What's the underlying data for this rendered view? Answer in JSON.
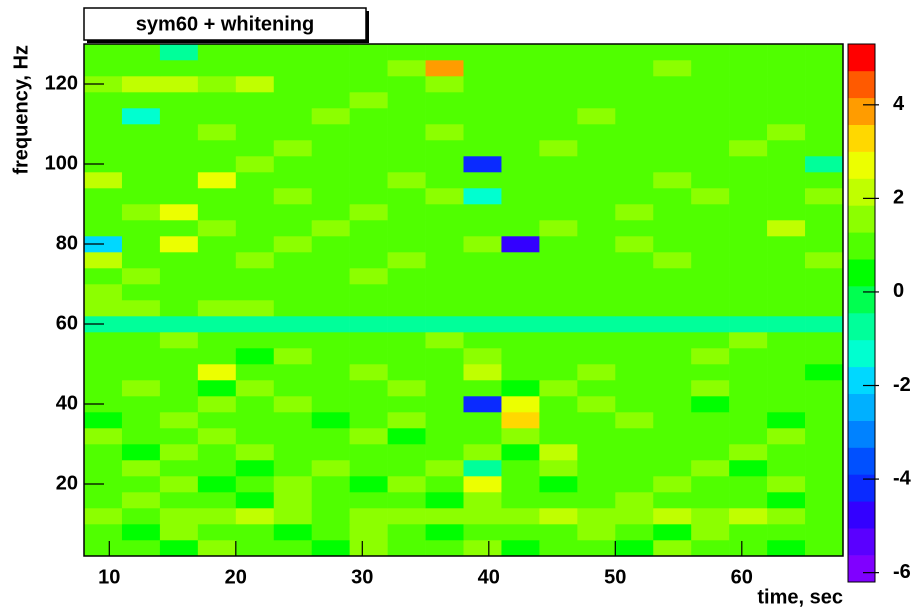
{
  "chart_data": {
    "type": "heatmap",
    "title": "sym60 + whitening",
    "x_label": "time, sec",
    "y_label": "frequency, Hz",
    "xlim": [
      8,
      68
    ],
    "ylim": [
      2,
      130
    ],
    "zlim": [
      -6.2,
      5.3
    ],
    "xticks": [
      10,
      20,
      30,
      40,
      50,
      60
    ],
    "yticks": [
      20,
      40,
      60,
      80,
      100,
      120
    ],
    "zticks": [
      -6,
      -4,
      -2,
      0,
      2,
      4
    ],
    "x_bins": [
      8,
      11,
      14,
      17,
      20,
      23,
      26,
      29,
      32,
      35,
      38,
      41,
      44,
      47,
      50,
      53,
      56,
      59,
      62,
      65,
      68
    ],
    "y_bins": [
      2,
      6,
      10,
      14,
      18,
      22,
      26,
      30,
      34,
      38,
      42,
      46,
      50,
      54,
      58,
      62,
      66,
      70,
      74,
      78,
      82,
      86,
      90,
      94,
      98,
      102,
      106,
      110,
      114,
      118,
      122,
      126,
      130
    ],
    "palette": [
      "#8000ff",
      "#5a00ff",
      "#3300ff",
      "#0a2aff",
      "#0050ff",
      "#0082ff",
      "#00b0ff",
      "#00d8ff",
      "#00ffd0",
      "#00ff9a",
      "#00ff50",
      "#00ff00",
      "#50ff00",
      "#8cff00",
      "#c0ff00",
      "#ecff00",
      "#ffd800",
      "#ff9c00",
      "#ff5a00",
      "#ff0000"
    ],
    "z": [
      [
        0.8,
        1.2,
        0.5,
        1.6,
        0.9,
        1.1,
        0.4,
        1.3,
        0.7,
        1.0,
        1.5,
        0.6,
        1.2,
        0.9,
        0.3,
        1.4,
        0.8,
        1.1,
        0.6,
        1.0
      ],
      [
        1.1,
        0.6,
        1.4,
        0.8,
        1.2,
        0.5,
        1.0,
        1.7,
        0.9,
        0.4,
        1.2,
        1.0,
        0.7,
        1.3,
        1.1,
        0.6,
        1.5,
        0.8,
        1.2,
        0.7
      ],
      [
        1.6,
        1.2,
        1.7,
        1.5,
        2.3,
        1.4,
        1.2,
        1.5,
        1.3,
        1.6,
        1.4,
        1.5,
        2.1,
        1.3,
        1.4,
        2.2,
        1.5,
        1.9,
        1.3,
        1.2
      ],
      [
        0.7,
        1.3,
        0.9,
        1.1,
        0.6,
        1.4,
        0.8,
        1.2,
        1.0,
        0.5,
        1.3,
        0.9,
        1.1,
        0.7,
        1.5,
        0.8,
        1.0,
        1.2,
        0.6,
        1.1
      ],
      [
        1.2,
        0.8,
        1.5,
        0.6,
        1.0,
        1.3,
        0.9,
        0.4,
        1.4,
        0.7,
        2.6,
        1.0,
        0.6,
        1.2,
        0.9,
        1.3,
        0.7,
        1.0,
        1.4,
        0.8
      ],
      [
        0.9,
        1.4,
        0.7,
        1.2,
        0.5,
        1.0,
        1.6,
        1.1,
        0.8,
        1.3,
        -0.6,
        1.2,
        1.5,
        0.7,
        1.1,
        0.9,
        1.3,
        0.6,
        1.0,
        1.2
      ],
      [
        1.0,
        0.6,
        1.3,
        0.9,
        1.4,
        0.8,
        1.1,
        0.7,
        1.2,
        1.0,
        1.5,
        0.3,
        2.4,
        1.1,
        0.8,
        1.2,
        0.9,
        1.4,
        0.7,
        0.9
      ],
      [
        1.3,
        1.0,
        0.8,
        1.5,
        0.7,
        1.2,
        0.9,
        1.3,
        0.6,
        1.1,
        0.9,
        1.4,
        0.8,
        1.2,
        1.0,
        0.7,
        1.1,
        0.9,
        1.3,
        1.0
      ],
      [
        0.6,
        1.1,
        1.4,
        0.8,
        1.2,
        0.9,
        0.5,
        1.0,
        1.3,
        0.7,
        1.2,
        3.2,
        1.1,
        0.9,
        1.4,
        0.8,
        1.2,
        1.0,
        0.6,
        1.1
      ],
      [
        1.2,
        0.9,
        0.7,
        1.3,
        1.0,
        1.4,
        1.1,
        0.8,
        0.9,
        1.2,
        -4.1,
        2.8,
        0.7,
        1.3,
        1.0,
        0.9,
        0.6,
        1.2,
        1.1,
        0.8
      ],
      [
        0.9,
        1.3,
        1.0,
        0.6,
        1.5,
        0.8,
        1.2,
        1.0,
        1.4,
        0.9,
        1.1,
        0.5,
        1.3,
        0.8,
        1.2,
        1.0,
        1.3,
        0.7,
        0.9,
        1.2
      ],
      [
        1.1,
        0.7,
        1.2,
        2.7,
        0.9,
        1.1,
        0.8,
        1.3,
        0.7,
        1.0,
        2.3,
        1.1,
        0.9,
        1.4,
        0.7,
        1.2,
        1.0,
        0.8,
        1.2,
        0.6
      ],
      [
        0.8,
        1.2,
        0.9,
        1.1,
        0.6,
        1.3,
        1.0,
        0.7,
        1.2,
        0.9,
        1.4,
        0.8,
        1.2,
        1.0,
        1.1,
        0.9,
        1.4,
        1.1,
        0.8,
        1.0
      ],
      [
        1.0,
        0.9,
        1.3,
        0.8,
        1.1,
        0.7,
        1.2,
        1.0,
        0.8,
        1.3,
        0.9,
        1.1,
        1.0,
        0.7,
        1.2,
        1.0,
        0.8,
        1.3,
        1.0,
        0.9
      ],
      [
        -0.8,
        -0.6,
        -0.7,
        -0.6,
        -0.7,
        -0.5,
        -0.6,
        -0.7,
        -0.6,
        -0.5,
        -0.6,
        -0.7,
        -0.5,
        -0.6,
        -0.6,
        -0.7,
        -0.5,
        -0.6,
        -0.7,
        -0.6
      ],
      [
        1.3,
        1.5,
        1.2,
        1.4,
        1.3,
        1.1,
        1.2,
        1.0,
        1.2,
        1.1,
        1.0,
        1.2,
        1.1,
        0.9,
        1.1,
        1.0,
        1.2,
        1.0,
        1.1,
        1.0
      ],
      [
        1.6,
        1.2,
        1.1,
        1.0,
        0.9,
        0.8,
        0.9,
        0.8,
        0.8,
        0.9,
        0.8,
        0.7,
        0.8,
        0.8,
        0.7,
        0.8,
        0.7,
        0.8,
        0.7,
        0.8
      ],
      [
        1.0,
        1.3,
        0.8,
        1.2,
        0.9,
        1.1,
        0.7,
        1.3,
        1.0,
        0.8,
        1.2,
        0.9,
        1.1,
        0.7,
        1.2,
        1.0,
        0.8,
        1.1,
        0.9,
        1.2
      ],
      [
        2.1,
        0.8,
        1.2,
        0.9,
        1.4,
        0.7,
        1.1,
        1.0,
        1.3,
        0.8,
        1.0,
        1.2,
        0.9,
        1.1,
        0.7,
        1.3,
        1.0,
        0.9,
        1.2,
        1.4
      ],
      [
        -1.8,
        1.1,
        2.6,
        1.0,
        0.8,
        1.3,
        0.9,
        1.2,
        0.7,
        1.1,
        1.4,
        -4.5,
        1.0,
        0.8,
        1.3,
        1.0,
        1.2,
        0.7,
        1.1,
        0.9
      ],
      [
        1.2,
        0.9,
        1.0,
        1.4,
        0.8,
        1.1,
        1.3,
        0.9,
        1.2,
        1.0,
        0.8,
        1.1,
        1.3,
        0.9,
        1.0,
        1.2,
        0.8,
        1.1,
        2.2,
        1.0
      ],
      [
        0.9,
        1.3,
        2.7,
        0.8,
        1.2,
        0.9,
        1.0,
        1.3,
        0.8,
        1.2,
        1.0,
        0.9,
        1.2,
        1.0,
        1.3,
        0.8,
        1.1,
        1.0,
        1.2,
        0.8
      ],
      [
        1.1,
        0.8,
        1.2,
        1.0,
        0.9,
        1.4,
        0.7,
        1.1,
        1.0,
        1.3,
        -1.5,
        1.0,
        0.8,
        1.2,
        0.9,
        1.1,
        1.3,
        0.9,
        1.0,
        1.3
      ],
      [
        2.4,
        1.0,
        0.9,
        2.6,
        1.1,
        0.8,
        1.2,
        0.9,
        1.3,
        1.0,
        1.1,
        0.8,
        1.2,
        1.0,
        0.9,
        1.3,
        1.0,
        1.2,
        0.8,
        1.0
      ],
      [
        1.0,
        1.2,
        0.8,
        1.1,
        1.3,
        1.0,
        0.9,
        1.2,
        1.0,
        0.8,
        -4.0,
        1.2,
        1.0,
        1.1,
        0.8,
        1.0,
        1.2,
        0.9,
        1.1,
        -0.5
      ],
      [
        0.8,
        1.1,
        1.2,
        0.9,
        1.0,
        1.3,
        1.1,
        0.8,
        1.2,
        1.1,
        0.9,
        1.0,
        1.3,
        0.8,
        1.2,
        1.0,
        0.9,
        1.3,
        1.0,
        1.1
      ],
      [
        1.2,
        0.9,
        1.0,
        1.3,
        0.8,
        1.1,
        1.0,
        1.2,
        0.9,
        1.3,
        1.0,
        1.2,
        0.8,
        1.0,
        1.1,
        0.9,
        1.2,
        1.0,
        1.3,
        0.9
      ],
      [
        0.9,
        -1.2,
        1.1,
        0.8,
        1.2,
        1.0,
        1.3,
        0.9,
        1.1,
        0.8,
        1.2,
        1.0,
        1.1,
        1.3,
        0.9,
        1.0,
        0.8,
        1.2,
        1.0,
        1.1
      ],
      [
        1.1,
        1.0,
        0.9,
        1.2,
        1.0,
        0.8,
        1.1,
        1.3,
        1.0,
        1.2,
        0.9,
        1.1,
        1.0,
        0.8,
        1.2,
        1.1,
        1.0,
        0.9,
        1.2,
        1.0
      ],
      [
        1.3,
        1.9,
        2.0,
        1.8,
        2.1,
        1.2,
        1.0,
        0.9,
        1.1,
        1.3,
        1.0,
        0.8,
        1.2,
        1.0,
        1.1,
        0.9,
        1.2,
        1.0,
        0.8,
        1.1
      ],
      [
        1.0,
        0.8,
        1.2,
        1.1,
        0.9,
        1.0,
        1.2,
        0.9,
        1.3,
        3.8,
        1.0,
        1.2,
        0.9,
        1.1,
        1.0,
        1.3,
        0.9,
        1.1,
        1.0,
        1.2
      ],
      [
        0.9,
        1.2,
        -1.0,
        1.0,
        1.1,
        0.8,
        1.0,
        1.2,
        0.9,
        1.0,
        1.1,
        0.9,
        1.2,
        1.0,
        0.8,
        1.1,
        1.0,
        1.2,
        0.9,
        1.0
      ]
    ]
  }
}
